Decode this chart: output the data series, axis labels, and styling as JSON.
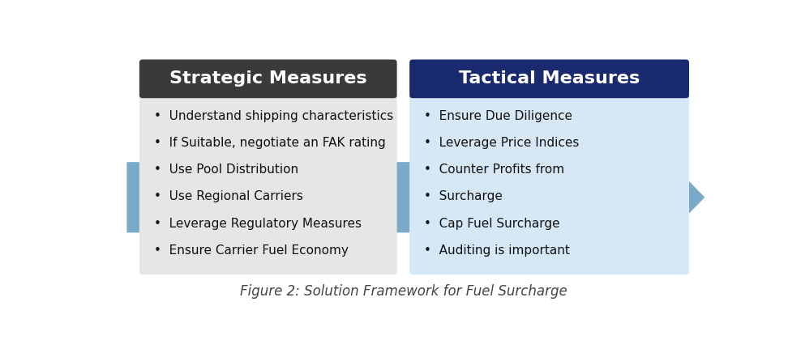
{
  "title": "Figure 2: Solution Framework for Fuel Surcharge",
  "left_header": "Strategic Measures",
  "right_header": "Tactical Measures",
  "left_header_bg": "#3a3a3a",
  "right_header_bg": "#1a2a6e",
  "left_body_bg": "#e6e6e6",
  "right_body_bg": "#d6e8f5",
  "arrow_color": "#7aaac8",
  "left_items": [
    "Understand shipping characteristics",
    "If Suitable, negotiate an FAK rating",
    "Use Pool Distribution",
    "Use Regional Carriers",
    "Leverage Regulatory Measures",
    "Ensure Carrier Fuel Economy"
  ],
  "right_items": [
    "Ensure Due Diligence",
    "Leverage Price Indices",
    "Counter Profits from",
    "Surcharge",
    "Cap Fuel Surcharge",
    "Auditing is important"
  ],
  "header_text_color": "#ffffff",
  "body_text_color": "#111111",
  "title_color": "#444444",
  "fig_width": 9.72,
  "fig_height": 4.2,
  "bg_color": "#ffffff"
}
